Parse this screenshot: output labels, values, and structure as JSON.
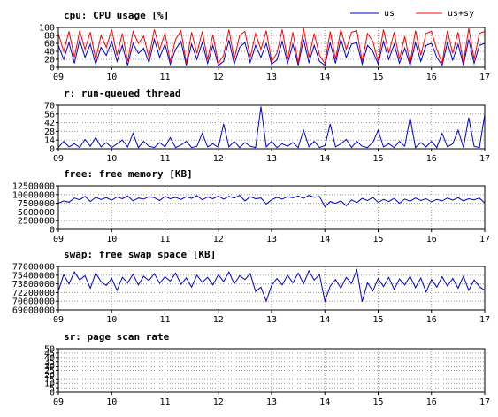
{
  "chart_data": [
    {
      "type": "line",
      "title": "cpu: CPU usage [%]",
      "ylim": [
        0,
        100
      ],
      "yticks": [
        0,
        20,
        40,
        60,
        80,
        100
      ],
      "ytick_labels": [
        "0",
        "20",
        "40",
        "60",
        "80",
        "100"
      ],
      "xlim": [
        9,
        17
      ],
      "xticks": [
        9,
        10,
        11,
        12,
        13,
        14,
        15,
        16,
        17
      ],
      "xtick_labels": [
        "09",
        "10",
        "11",
        "12",
        "13",
        "14",
        "15",
        "16",
        "17"
      ],
      "grid": true,
      "legend": "top-right",
      "series": [
        {
          "name": "us",
          "color": "#0000cc",
          "x": [
            9.0,
            9.1,
            9.2,
            9.3,
            9.4,
            9.5,
            9.6,
            9.7,
            9.8,
            9.9,
            10.0,
            10.1,
            10.2,
            10.3,
            10.4,
            10.5,
            10.6,
            10.7,
            10.8,
            10.9,
            11.0,
            11.1,
            11.2,
            11.3,
            11.4,
            11.5,
            11.6,
            11.7,
            11.8,
            11.9,
            12.0,
            12.1,
            12.2,
            12.3,
            12.4,
            12.5,
            12.6,
            12.7,
            12.8,
            12.9,
            13.0,
            13.1,
            13.2,
            13.3,
            13.4,
            13.5,
            13.6,
            13.7,
            13.8,
            13.9,
            14.0,
            14.1,
            14.2,
            14.3,
            14.4,
            14.5,
            14.6,
            14.7,
            14.8,
            14.9,
            15.0,
            15.1,
            15.2,
            15.3,
            15.4,
            15.5,
            15.6,
            15.7,
            15.8,
            15.9,
            16.0,
            16.1,
            16.2,
            16.3,
            16.4,
            16.5,
            16.6,
            16.7,
            16.8,
            16.9,
            17.0
          ],
          "values": [
            55,
            20,
            62,
            10,
            68,
            25,
            58,
            8,
            50,
            30,
            65,
            15,
            55,
            5,
            60,
            35,
            48,
            12,
            70,
            25,
            58,
            8,
            45,
            65,
            5,
            58,
            20,
            62,
            10,
            55,
            5,
            15,
            68,
            8,
            50,
            62,
            12,
            55,
            25,
            60,
            8,
            18,
            65,
            10,
            58,
            5,
            70,
            12,
            55,
            15,
            5,
            62,
            10,
            70,
            25,
            58,
            62,
            8,
            55,
            40,
            8,
            65,
            20,
            58,
            10,
            48,
            5,
            62,
            15,
            55,
            60,
            25,
            5,
            62,
            18,
            58,
            5,
            70,
            10,
            55,
            60
          ]
        },
        {
          "name": "us+sy",
          "color": "#ff0000",
          "x": [
            9.0,
            9.1,
            9.2,
            9.3,
            9.4,
            9.5,
            9.6,
            9.7,
            9.8,
            9.9,
            10.0,
            10.1,
            10.2,
            10.3,
            10.4,
            10.5,
            10.6,
            10.7,
            10.8,
            10.9,
            11.0,
            11.1,
            11.2,
            11.3,
            11.4,
            11.5,
            11.6,
            11.7,
            11.8,
            11.9,
            12.0,
            12.1,
            12.2,
            12.3,
            12.4,
            12.5,
            12.6,
            12.7,
            12.8,
            12.9,
            13.0,
            13.1,
            13.2,
            13.3,
            13.4,
            13.5,
            13.6,
            13.7,
            13.8,
            13.9,
            14.0,
            14.1,
            14.2,
            14.3,
            14.4,
            14.5,
            14.6,
            14.7,
            14.8,
            14.9,
            15.0,
            15.1,
            15.2,
            15.3,
            15.4,
            15.5,
            15.6,
            15.7,
            15.8,
            15.9,
            16.0,
            16.1,
            16.2,
            16.3,
            16.4,
            16.5,
            16.6,
            16.7,
            16.8,
            16.9,
            17.0
          ],
          "values": [
            85,
            40,
            90,
            25,
            92,
            45,
            88,
            20,
            80,
            50,
            95,
            30,
            85,
            15,
            90,
            60,
            78,
            25,
            95,
            45,
            85,
            15,
            70,
            92,
            10,
            88,
            35,
            90,
            20,
            82,
            10,
            30,
            95,
            20,
            80,
            90,
            25,
            85,
            45,
            92,
            15,
            35,
            95,
            20,
            88,
            10,
            98,
            25,
            85,
            30,
            10,
            90,
            20,
            95,
            45,
            88,
            92,
            15,
            85,
            65,
            15,
            95,
            35,
            88,
            20,
            78,
            10,
            92,
            30,
            85,
            90,
            45,
            10,
            92,
            35,
            88,
            10,
            98,
            20,
            85,
            90
          ]
        }
      ]
    },
    {
      "type": "line",
      "title": "r: run-queued thread",
      "ylim": [
        0,
        70
      ],
      "yticks": [
        0,
        14,
        28,
        42,
        56,
        70
      ],
      "ytick_labels": [
        "0",
        "14",
        "28",
        "42",
        "56",
        "70"
      ],
      "xlim": [
        9,
        17
      ],
      "xticks": [
        9,
        10,
        11,
        12,
        13,
        14,
        15,
        16,
        17
      ],
      "xtick_labels": [
        "09",
        "10",
        "11",
        "12",
        "13",
        "14",
        "15",
        "16",
        "17"
      ],
      "grid": true,
      "series": [
        {
          "color": "#0000cc",
          "x": [
            9.0,
            9.1,
            9.2,
            9.3,
            9.4,
            9.5,
            9.6,
            9.7,
            9.8,
            9.9,
            10.0,
            10.1,
            10.2,
            10.3,
            10.4,
            10.5,
            10.6,
            10.7,
            10.8,
            10.9,
            11.0,
            11.1,
            11.2,
            11.3,
            11.4,
            11.5,
            11.6,
            11.7,
            11.8,
            11.9,
            12.0,
            12.1,
            12.2,
            12.3,
            12.4,
            12.5,
            12.6,
            12.7,
            12.8,
            12.9,
            13.0,
            13.1,
            13.2,
            13.3,
            13.4,
            13.5,
            13.6,
            13.7,
            13.8,
            13.9,
            14.0,
            14.1,
            14.2,
            14.3,
            14.4,
            14.5,
            14.6,
            14.7,
            14.8,
            14.9,
            15.0,
            15.1,
            15.2,
            15.3,
            15.4,
            15.5,
            15.6,
            15.7,
            15.8,
            15.9,
            16.0,
            16.1,
            16.2,
            16.3,
            16.4,
            16.5,
            16.6,
            16.7,
            16.8,
            16.9,
            17.0
          ],
          "values": [
            2,
            12,
            3,
            8,
            2,
            15,
            4,
            18,
            3,
            10,
            2,
            8,
            14,
            3,
            25,
            2,
            12,
            4,
            2,
            10,
            3,
            18,
            2,
            6,
            12,
            2,
            4,
            25,
            3,
            8,
            2,
            40,
            3,
            12,
            2,
            10,
            4,
            2,
            68,
            3,
            12,
            2,
            8,
            4,
            10,
            2,
            30,
            3,
            12,
            2,
            5,
            40,
            3,
            8,
            15,
            2,
            12,
            4,
            2,
            10,
            30,
            3,
            8,
            2,
            12,
            4,
            50,
            2,
            10,
            3,
            12,
            2,
            25,
            3,
            8,
            30,
            2,
            50,
            4,
            2,
            55
          ]
        }
      ]
    },
    {
      "type": "line",
      "title": "free: free memory [KB]",
      "ylim": [
        0,
        12500000
      ],
      "yticks": [
        0,
        2500000,
        5000000,
        7500000,
        10000000,
        12500000
      ],
      "ytick_labels": [
        "0",
        "2500000",
        "5000000",
        "7500000",
        "10000000",
        "12500000"
      ],
      "xlim": [
        9,
        17
      ],
      "xticks": [
        9,
        10,
        11,
        12,
        13,
        14,
        15,
        16,
        17
      ],
      "xtick_labels": [
        "09",
        "10",
        "11",
        "12",
        "13",
        "14",
        "15",
        "16",
        "17"
      ],
      "grid": true,
      "series": [
        {
          "color": "#0000cc",
          "x": [
            9.0,
            9.1,
            9.2,
            9.3,
            9.4,
            9.5,
            9.6,
            9.7,
            9.8,
            9.9,
            10.0,
            10.1,
            10.2,
            10.3,
            10.4,
            10.5,
            10.6,
            10.7,
            10.8,
            10.9,
            11.0,
            11.1,
            11.2,
            11.3,
            11.4,
            11.5,
            11.6,
            11.7,
            11.8,
            11.9,
            12.0,
            12.1,
            12.2,
            12.3,
            12.4,
            12.5,
            12.6,
            12.7,
            12.8,
            12.9,
            13.0,
            13.1,
            13.2,
            13.3,
            13.4,
            13.5,
            13.6,
            13.7,
            13.8,
            13.9,
            14.0,
            14.1,
            14.2,
            14.3,
            14.4,
            14.5,
            14.6,
            14.7,
            14.8,
            14.9,
            15.0,
            15.1,
            15.2,
            15.3,
            15.4,
            15.5,
            15.6,
            15.7,
            15.8,
            15.9,
            16.0,
            16.1,
            16.2,
            16.3,
            16.4,
            16.5,
            16.6,
            16.7,
            16.8,
            16.9,
            17.0
          ],
          "values": [
            7500000,
            8200000,
            7800000,
            9000000,
            8500000,
            9500000,
            8000000,
            9200000,
            8600000,
            9100000,
            8400000,
            9300000,
            8800000,
            9600000,
            8200000,
            9000000,
            8700000,
            9400000,
            9100000,
            8300000,
            9500000,
            8800000,
            9200000,
            8600000,
            9400000,
            8900000,
            9700000,
            8500000,
            9300000,
            8800000,
            9600000,
            8700000,
            9500000,
            9000000,
            9800000,
            8200000,
            9400000,
            8800000,
            9000000,
            7300000,
            8500000,
            9200000,
            8700000,
            9400000,
            9100000,
            9600000,
            8900000,
            9800000,
            9200000,
            9500000,
            6500000,
            8000000,
            7500000,
            8200000,
            6800000,
            8500000,
            7700000,
            8900000,
            8300000,
            9200000,
            7800000,
            8600000,
            8000000,
            8900000,
            7500000,
            8700000,
            8100000,
            9000000,
            8300000,
            8800000,
            7900000,
            8600000,
            8200000,
            9000000,
            8400000,
            9100000,
            8200000,
            8800000,
            8500000,
            9000000,
            7600000
          ]
        }
      ]
    },
    {
      "type": "line",
      "title": "swap: free swap space [KB]",
      "ylim": [
        69000000,
        77000000
      ],
      "yticks": [
        69000000,
        70600000,
        72200000,
        73800000,
        75400000,
        77000000
      ],
      "ytick_labels": [
        "69000000",
        "70600000",
        "72200000",
        "73800000",
        "75400000",
        "77000000"
      ],
      "xlim": [
        9,
        17
      ],
      "xticks": [
        9,
        10,
        11,
        12,
        13,
        14,
        15,
        16,
        17
      ],
      "xtick_labels": [
        "09",
        "10",
        "11",
        "12",
        "13",
        "14",
        "15",
        "16",
        "17"
      ],
      "grid": true,
      "series": [
        {
          "color": "#0000cc",
          "x": [
            9.0,
            9.1,
            9.2,
            9.3,
            9.4,
            9.5,
            9.6,
            9.7,
            9.8,
            9.9,
            10.0,
            10.1,
            10.2,
            10.3,
            10.4,
            10.5,
            10.6,
            10.7,
            10.8,
            10.9,
            11.0,
            11.1,
            11.2,
            11.3,
            11.4,
            11.5,
            11.6,
            11.7,
            11.8,
            11.9,
            12.0,
            12.1,
            12.2,
            12.3,
            12.4,
            12.5,
            12.6,
            12.7,
            12.8,
            12.9,
            13.0,
            13.1,
            13.2,
            13.3,
            13.4,
            13.5,
            13.6,
            13.7,
            13.8,
            13.9,
            14.0,
            14.1,
            14.2,
            14.3,
            14.4,
            14.5,
            14.6,
            14.7,
            14.8,
            14.9,
            15.0,
            15.1,
            15.2,
            15.3,
            15.4,
            15.5,
            15.6,
            15.7,
            15.8,
            15.9,
            16.0,
            16.1,
            16.2,
            16.3,
            16.4,
            16.5,
            16.6,
            16.7,
            16.8,
            16.9,
            17.0
          ],
          "values": [
            72500000,
            75500000,
            73800000,
            76000000,
            74500000,
            75300000,
            73000000,
            75800000,
            74200000,
            73500000,
            74800000,
            72600000,
            75000000,
            74000000,
            75600000,
            73600000,
            75200000,
            74400000,
            75700000,
            73900000,
            75100000,
            74300000,
            75800000,
            73700000,
            74900000,
            73200000,
            75400000,
            74100000,
            75000000,
            73600000,
            75500000,
            74200000,
            76000000,
            73800000,
            75300000,
            74600000,
            75700000,
            72400000,
            73200000,
            70600000,
            73500000,
            74800000,
            73600000,
            75400000,
            74000000,
            75800000,
            73800000,
            76200000,
            74500000,
            75500000,
            70600000,
            73400000,
            74600000,
            73000000,
            75000000,
            73900000,
            76400000,
            70500000,
            74000000,
            72500000,
            74800000,
            73300000,
            75000000,
            72800000,
            74700000,
            73600000,
            75200000,
            73100000,
            74900000,
            72300000,
            74600000,
            73200000,
            75100000,
            73400000,
            74800000,
            73000000,
            75200000,
            72600000,
            74500000,
            73300000,
            72600000
          ]
        }
      ]
    },
    {
      "type": "line",
      "title": "sr: page scan rate",
      "ylim": [
        0,
        50
      ],
      "yticks": [
        0,
        5,
        10,
        15,
        20,
        25,
        30,
        35,
        40,
        45,
        50
      ],
      "ytick_labels": [
        "0",
        "5",
        "10",
        "15",
        "20",
        "25",
        "30",
        "35",
        "40",
        "45",
        "50"
      ],
      "xlim": [
        9,
        17
      ],
      "xticks": [
        9,
        10,
        11,
        12,
        13,
        14,
        15,
        16,
        17
      ],
      "xtick_labels": [
        "09",
        "10",
        "11",
        "12",
        "13",
        "14",
        "15",
        "16",
        "17"
      ],
      "grid": true,
      "series": [
        {
          "color": "#0000cc",
          "x": [
            9.0,
            17.0
          ],
          "values": [
            0,
            0
          ]
        }
      ]
    }
  ]
}
